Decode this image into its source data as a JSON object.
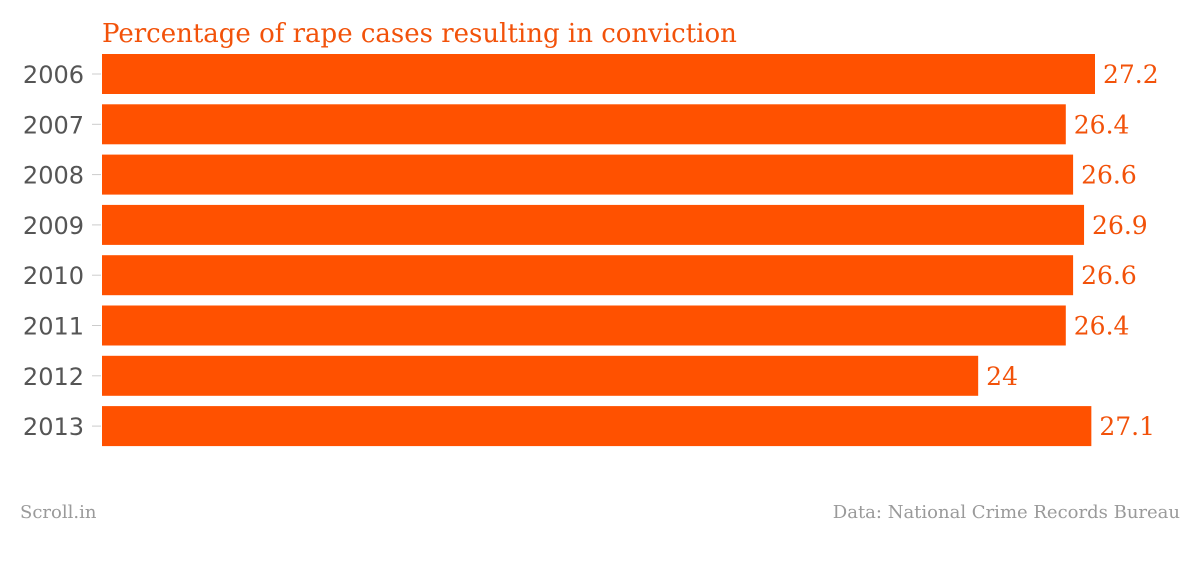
{
  "chart_data": {
    "type": "bar",
    "orientation": "horizontal",
    "title": "Percentage of rape cases resulting in conviction",
    "categories": [
      "2006",
      "2007",
      "2008",
      "2009",
      "2010",
      "2011",
      "2012",
      "2013"
    ],
    "values": [
      27.2,
      26.4,
      26.6,
      26.9,
      26.6,
      26.4,
      24,
      27.1
    ],
    "value_labels": [
      "27.2",
      "26.4",
      "26.6",
      "26.9",
      "26.6",
      "26.4",
      "24",
      "27.1"
    ],
    "xlim": [
      0,
      27.2
    ],
    "grid": false,
    "legend": "none",
    "colors": {
      "bar": "#ff5100",
      "title": "#f2520a",
      "value_label": "#f2520a",
      "tick_label": "#555555",
      "tick_mark": "#cccccc",
      "footer": "#9a9a9a"
    }
  },
  "footer": {
    "source_left": "Scroll.in",
    "source_right": "Data: National Crime Records Bureau"
  }
}
